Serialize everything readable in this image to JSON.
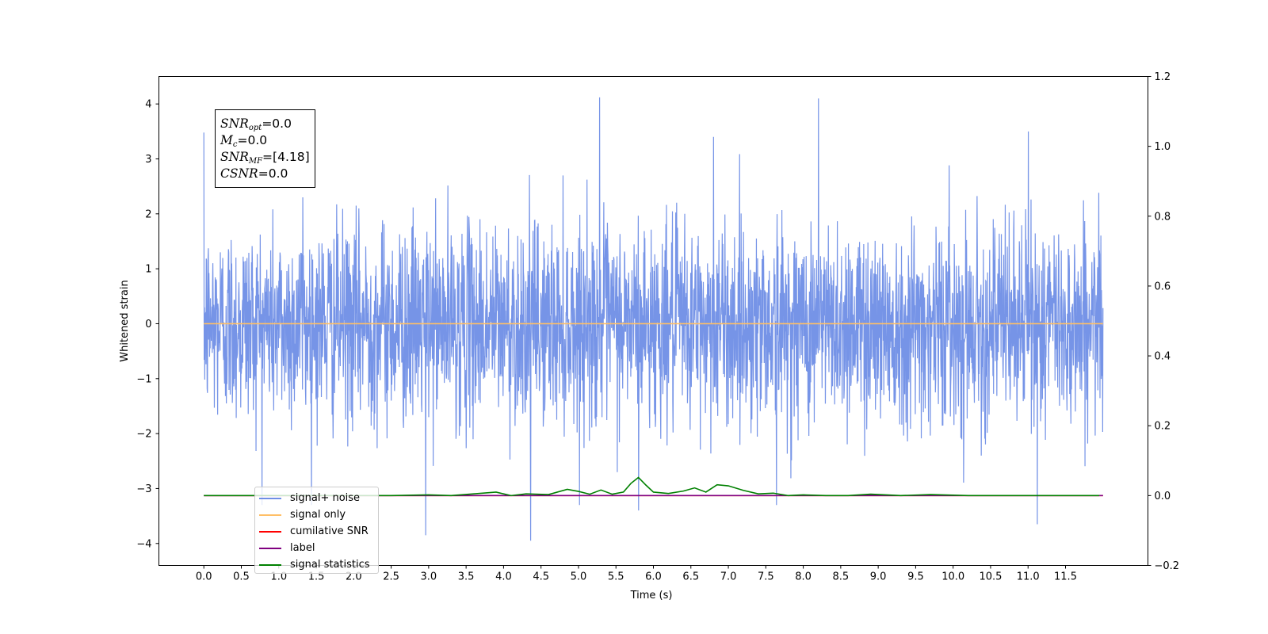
{
  "chart_data": {
    "type": "line",
    "xlabel": "Time (s)",
    "ylabel": "Whitened strain",
    "xlim": [
      -0.6,
      12.6
    ],
    "ylim": [
      -4.4,
      4.5
    ],
    "y2lim": [
      -0.2,
      1.2
    ],
    "x_ticks": [
      "0.0",
      "0.5",
      "1.0",
      "1.5",
      "2.0",
      "2.5",
      "3.0",
      "3.5",
      "4.0",
      "4.5",
      "5.0",
      "5.5",
      "6.0",
      "6.5",
      "7.0",
      "7.5",
      "8.0",
      "8.5",
      "9.0",
      "9.5",
      "10.0",
      "10.5",
      "11.0",
      "11.5"
    ],
    "y_ticks": [
      "4",
      "3",
      "2",
      "1",
      "0",
      "−1",
      "−2",
      "−3",
      "−4"
    ],
    "y2_ticks": [
      "1.2",
      "1.0",
      "0.8",
      "0.6",
      "0.4",
      "0.2",
      "0.0",
      "−0.2"
    ],
    "legend_position": "lower-left",
    "series": [
      {
        "name": "signal+ noise",
        "color": "#6f8ee6",
        "axis": "left",
        "x_range": [
          0.0,
          12.0
        ],
        "description_values": "white noise, amplitude about ±2, peaks reaching 4.1 and -3.9"
      },
      {
        "name": "signal only",
        "color": "#ffbf66",
        "axis": "left",
        "x": [
          0.0,
          12.0
        ],
        "y": [
          0.0,
          0.0
        ]
      },
      {
        "name": "cumilative SNR",
        "color": "#ff0000",
        "axis": "right",
        "x": [
          0.0,
          12.0
        ],
        "y": [
          0.0,
          0.0
        ]
      },
      {
        "name": "label",
        "color": "#800080",
        "axis": "right",
        "x": [
          0.0,
          12.0
        ],
        "y": [
          0.0,
          0.0
        ]
      },
      {
        "name": "signal statistics",
        "color": "#008000",
        "axis": "right",
        "x": [
          0.0,
          0.5,
          1.0,
          1.5,
          2.0,
          2.5,
          3.0,
          3.3,
          3.6,
          3.9,
          4.1,
          4.3,
          4.6,
          4.85,
          5.0,
          5.15,
          5.3,
          5.45,
          5.6,
          5.7,
          5.8,
          5.9,
          6.0,
          6.2,
          6.4,
          6.55,
          6.7,
          6.85,
          7.0,
          7.2,
          7.4,
          7.6,
          7.8,
          8.0,
          8.3,
          8.6,
          8.9,
          9.3,
          9.7,
          10.2,
          10.7,
          11.2,
          11.6,
          11.95
        ],
        "y": [
          0.0,
          0.0,
          0.0,
          0.0,
          0.0,
          0.0,
          0.002,
          0.0,
          0.005,
          0.01,
          0.0,
          0.005,
          0.003,
          0.018,
          0.012,
          0.004,
          0.016,
          0.004,
          0.01,
          0.035,
          0.052,
          0.03,
          0.01,
          0.006,
          0.013,
          0.022,
          0.01,
          0.031,
          0.028,
          0.015,
          0.005,
          0.007,
          0.0,
          0.002,
          0.0,
          0.0,
          0.004,
          0.0,
          0.003,
          0.0,
          0.0,
          0.0,
          0.0,
          0.0
        ]
      }
    ]
  },
  "annotation": {
    "lines": [
      {
        "sym": "SNR",
        "sub": "opt",
        "value": "=0.0"
      },
      {
        "sym": "M",
        "sub": "c",
        "value": "=0.0"
      },
      {
        "sym": "SNR",
        "sub": "MF",
        "value": "=[4.18]"
      },
      {
        "sym": "CSNR",
        "sub": "",
        "value": "=0.0"
      }
    ]
  },
  "legend": {
    "items": [
      {
        "label": "signal+ noise",
        "color": "#6f8ee6"
      },
      {
        "label": "signal only",
        "color": "#ffbf66"
      },
      {
        "label": "cumilative SNR",
        "color": "#ff0000"
      },
      {
        "label": "label",
        "color": "#800080"
      },
      {
        "label": "signal statistics",
        "color": "#008000"
      }
    ]
  }
}
